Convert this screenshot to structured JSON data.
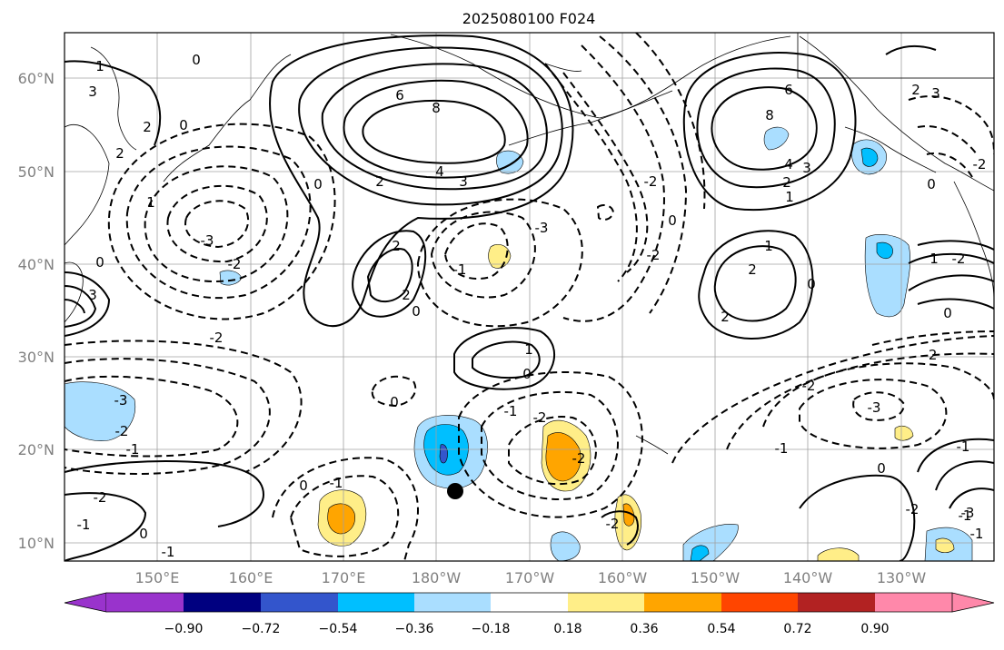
{
  "title": "2025080100 F024",
  "lon_ticks": [
    "150°E",
    "160°E",
    "170°E",
    "180°W",
    "170°W",
    "160°W",
    "150°W",
    "140°W",
    "130°W"
  ],
  "lat_ticks": [
    "60°N",
    "50°N",
    "40°N",
    "30°N",
    "20°N",
    "10°N"
  ],
  "colorbar": {
    "tick_labels": [
      "−0.90",
      "−0.72",
      "−0.54",
      "−0.36",
      "−0.18",
      "0.18",
      "0.36",
      "0.54",
      "0.72",
      "0.90"
    ],
    "colors": [
      "#9933cc",
      "#000080",
      "#3355cc",
      "#00bfff",
      "#aadeff",
      "#ffffff",
      "#ffee88",
      "#ffa500",
      "#ff4500",
      "#b22222",
      "#ff88aa"
    ]
  },
  "contour_labels": {
    "w_pacific_high": [
      "6",
      "8",
      "4",
      "3",
      "2"
    ],
    "gulf_alaska_high": [
      "6",
      "8",
      "4",
      "3",
      "2",
      "1"
    ],
    "subtropical_ridge": [
      "1",
      "0",
      "2",
      "2",
      "0"
    ],
    "ne_pacific_ridge": [
      "1",
      "2",
      "2",
      "0"
    ],
    "central_ridge": [
      "1",
      "0"
    ],
    "west_lows": [
      "-3",
      "-2",
      "-2",
      "0"
    ],
    "mid_lows": [
      "-3",
      "-2",
      "0",
      "-2",
      "-2",
      "-2"
    ],
    "tropical_lows": [
      "-3",
      "-2",
      "-1",
      "-1",
      "-2",
      "-2",
      "-1",
      "0",
      "-1",
      "-3"
    ],
    "sw_labels": [
      "-2",
      "-1",
      "-1",
      "0",
      "-2",
      "-1",
      "0",
      "-1",
      "-2",
      "0"
    ],
    "se_high": [
      "-2",
      "-3",
      "-1",
      "0"
    ],
    "misc": [
      "1",
      "3",
      "3",
      "2",
      "1",
      "2",
      "3",
      "0",
      "0",
      "2",
      "0",
      "-2",
      "-2",
      "-1",
      "0"
    ]
  },
  "marker": {
    "name": "storm-position"
  }
}
